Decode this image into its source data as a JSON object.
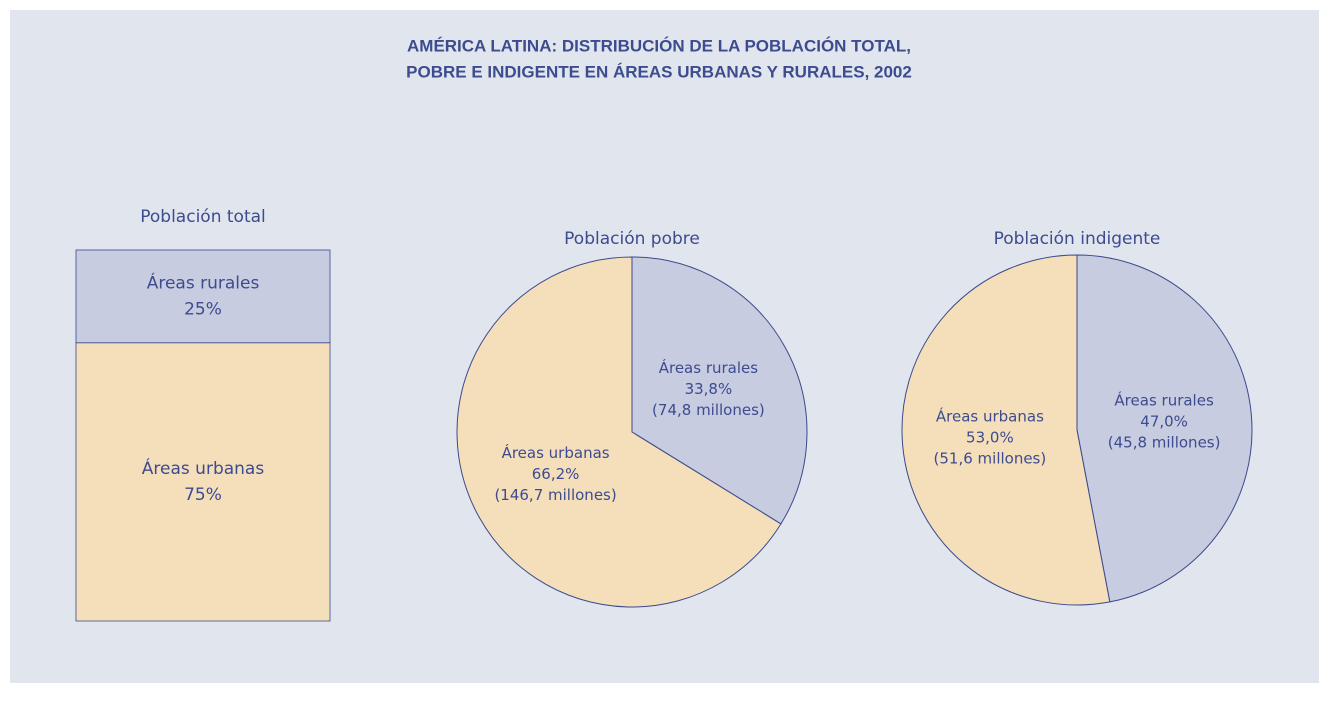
{
  "title": [
    "AMÉRICA LATINA: DISTRIBUCIÓN DE LA POBLACIÓN TOTAL,",
    "POBRE E INDIGENTE EN ÁREAS URBANAS Y RURALES, 2002"
  ],
  "chart_data": [
    {
      "type": "stacked-bar",
      "title": "Población total",
      "series": [
        {
          "name": "Áreas urbanas",
          "color": "#f5dfbb",
          "values": [
            75
          ],
          "value_labels": [
            "75%"
          ]
        },
        {
          "name": "Áreas rurales",
          "color": "#c7cce0",
          "values": [
            25
          ],
          "value_labels": [
            "25%"
          ]
        }
      ]
    },
    {
      "type": "pie",
      "title": "Población pobre",
      "labels": [
        "Áreas rurales",
        "Áreas urbanas"
      ],
      "values": [
        33.8,
        66.2
      ],
      "value_labels": [
        "33,8%",
        "66,2%"
      ],
      "details": [
        "(74,8 millones)",
        "(146,7 millones)"
      ],
      "colors": [
        "#c7cce0",
        "#f5dfbb"
      ]
    },
    {
      "type": "pie",
      "title": "Población indigente",
      "labels": [
        "Áreas rurales",
        "Áreas urbanas"
      ],
      "values": [
        47.0,
        53.0
      ],
      "value_labels": [
        "47,0%",
        "53,0%"
      ],
      "details": [
        "(45,8 millones)",
        "(51,6 millones)"
      ],
      "colors": [
        "#c7cce0",
        "#f5dfbb"
      ]
    }
  ]
}
